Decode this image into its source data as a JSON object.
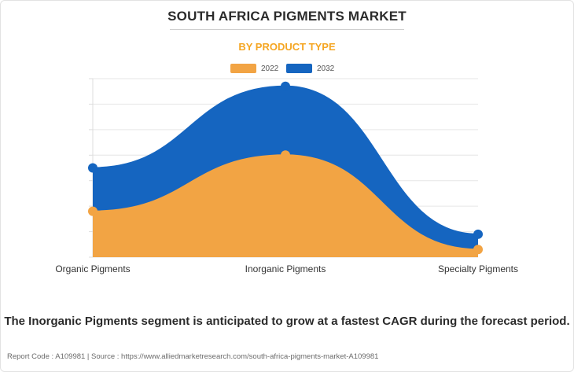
{
  "title": "SOUTH AFRICA PIGMENTS MARKET",
  "subtitle": "BY PRODUCT TYPE",
  "footnote": "The Inorganic Pigments segment is anticipated to grow at a fastest CAGR during the forecast period.",
  "source": "Report Code : A109981  |  Source : https://www.alliedmarketresearch.com/south-africa-pigments-market-A109981",
  "colors": {
    "series_2022": "#f2a444",
    "series_2032": "#1565c0",
    "title": "#2b2b2b",
    "subtitle": "#f5a623"
  },
  "chart_data": {
    "type": "area",
    "categories": [
      "Organic Pigments",
      "Inorganic Pigments",
      "Specialty Pigments"
    ],
    "series": [
      {
        "name": "2022",
        "values": [
          18,
          40,
          3
        ]
      },
      {
        "name": "2032",
        "values": [
          35,
          67,
          9
        ]
      }
    ],
    "ylim": [
      0,
      70
    ],
    "grid": true,
    "smooth": true,
    "legend": "top-center",
    "xlabel": "",
    "ylabel": ""
  }
}
